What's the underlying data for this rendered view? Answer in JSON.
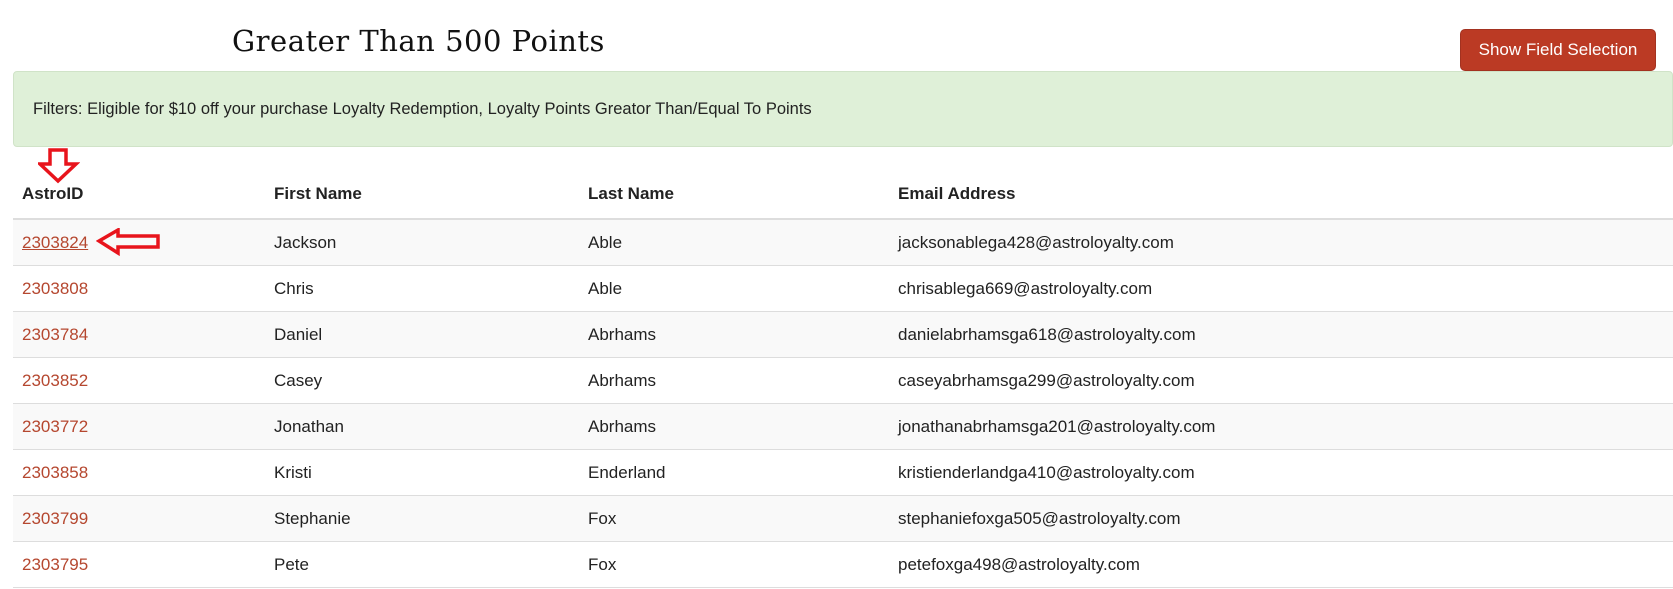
{
  "page_title": "Greater Than 500 Points",
  "show_field_selection_label": "Show Field Selection",
  "filters_text": "Filters: Eligible for $10 off your purchase Loyalty Redemption, Loyalty Points Greator Than/Equal To Points",
  "accent_color": "#bb3a24",
  "annotation_color": "#e8141c",
  "table": {
    "headers": [
      "AstroID",
      "First Name",
      "Last Name",
      "Email Address"
    ],
    "rows": [
      [
        "2303824",
        "Jackson",
        "Able",
        "jacksonablega428@astroloyalty.com"
      ],
      [
        "2303808",
        "Chris",
        "Able",
        "chrisablega669@astroloyalty.com"
      ],
      [
        "2303784",
        "Daniel",
        "Abrhams",
        "danielabrhamsga618@astroloyalty.com"
      ],
      [
        "2303852",
        "Casey",
        "Abrhams",
        "caseyabrhamsga299@astroloyalty.com"
      ],
      [
        "2303772",
        "Jonathan",
        "Abrhams",
        "jonathanabrhamsga201@astroloyalty.com"
      ],
      [
        "2303858",
        "Kristi",
        "Enderland",
        "kristienderlandga410@astroloyalty.com"
      ],
      [
        "2303799",
        "Stephanie",
        "Fox",
        "stephaniefoxga505@astroloyalty.com"
      ],
      [
        "2303795",
        "Pete",
        "Fox",
        "petefoxga498@astroloyalty.com"
      ]
    ]
  }
}
